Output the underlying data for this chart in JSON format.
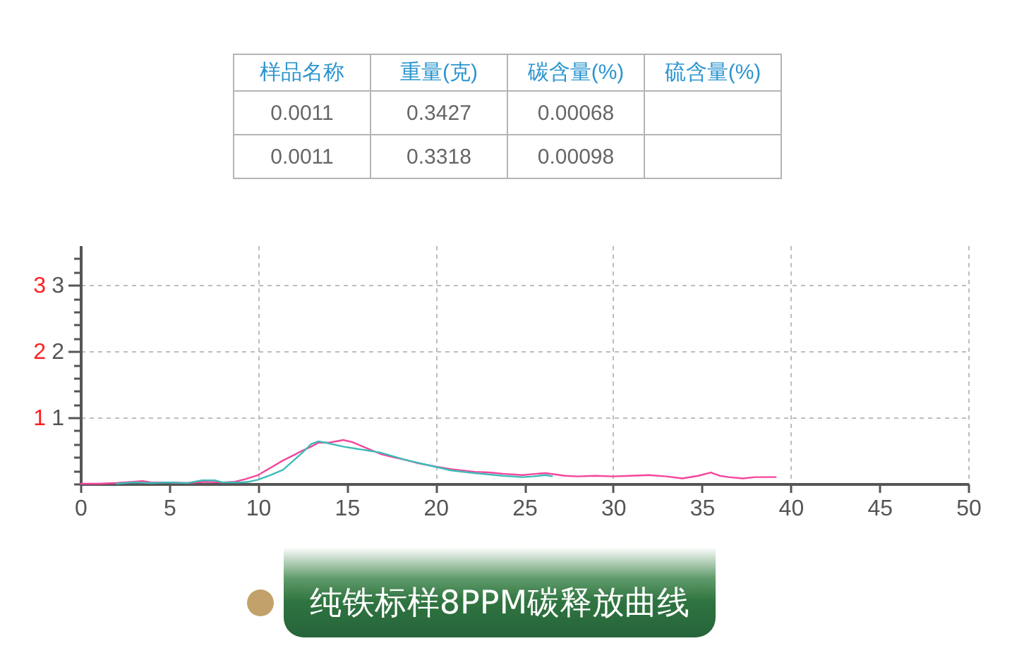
{
  "chart_data": [
    {
      "type": "other",
      "categories": [
        "样品名称",
        "重量(克)",
        "碳含量(%)",
        "硫含量(%)"
      ],
      "cell_labels": [
        [
          "0.0011",
          "0.3427",
          "0.00068",
          null
        ],
        [
          "0.0011",
          "0.3318",
          "0.00098",
          null
        ]
      ]
    },
    {
      "type": "line",
      "title": "纯铁标样8PPM碳释放曲线",
      "series": [
        {
          "color": "#f5459b",
          "axis": "y2",
          "x": [
            0,
            1,
            2,
            3,
            3.5,
            4,
            5,
            6,
            7,
            8,
            8.7,
            9.3,
            10,
            10.7,
            11.4,
            12,
            12.5,
            13,
            13.4,
            14,
            14.8,
            15.3,
            16,
            16.9,
            17.6,
            18.3,
            19,
            19.6,
            20,
            20.9,
            22.2,
            23,
            23.8,
            24.9,
            25.7,
            26.2,
            27.3,
            28,
            29,
            30,
            31,
            32,
            33,
            33.9,
            34.8,
            35.5,
            36,
            36.5,
            37.3,
            38,
            39.2
          ],
          "values": [
            0,
            0,
            0.01,
            0.03,
            0.04,
            0.02,
            0.02,
            0.01,
            0.03,
            0.02,
            0.03,
            0.07,
            0.13,
            0.24,
            0.35,
            0.43,
            0.5,
            0.56,
            0.62,
            0.62,
            0.66,
            0.63,
            0.55,
            0.45,
            0.4,
            0.36,
            0.31,
            0.28,
            0.26,
            0.22,
            0.18,
            0.17,
            0.15,
            0.13,
            0.15,
            0.16,
            0.12,
            0.11,
            0.12,
            0.11,
            0.12,
            0.13,
            0.11,
            0.08,
            0.12,
            0.17,
            0.12,
            0.1,
            0.08,
            0.1,
            0.1
          ]
        },
        {
          "color": "#3dbcb8",
          "x": [
            2,
            3,
            4,
            5,
            6,
            6.8,
            7.6,
            8,
            9,
            9.5,
            10,
            10.7,
            11.4,
            12,
            12.5,
            13,
            13.4,
            13.8,
            14.8,
            15.5,
            16.2,
            16.9,
            18.3,
            19.6,
            20.9,
            22.2,
            23.8,
            24.9,
            25.5,
            26.2,
            26.6
          ],
          "values": [
            0,
            0.02,
            0.01,
            0.02,
            0.01,
            0.05,
            0.05,
            0.02,
            0.02,
            0.03,
            0.06,
            0.13,
            0.21,
            0.35,
            0.47,
            0.6,
            0.64,
            0.62,
            0.56,
            0.53,
            0.5,
            0.47,
            0.36,
            0.28,
            0.2,
            0.16,
            0.12,
            0.1,
            0.11,
            0.13,
            0.11
          ]
        }
      ],
      "xlim": [
        0,
        50
      ],
      "xticks": [
        0,
        5,
        10,
        15,
        20,
        25,
        30,
        35,
        40,
        45,
        50
      ],
      "ylim": [
        0,
        3.6
      ],
      "yticks": [
        {
          "value": 0,
          "label": null
        },
        {
          "value": 0.2,
          "label": null
        },
        {
          "value": 0.4,
          "label": null
        },
        {
          "value": 0.6,
          "label": null
        },
        {
          "value": 0.8,
          "label": null
        },
        1,
        {
          "value": 1.2,
          "label": null
        },
        {
          "value": 1.4,
          "label": null
        },
        {
          "value": 1.6,
          "label": null
        },
        {
          "value": 1.8,
          "label": null
        },
        2,
        {
          "value": 2.2,
          "label": null
        },
        {
          "value": 2.4,
          "label": null
        },
        {
          "value": 2.6,
          "label": null
        },
        {
          "value": 2.8,
          "label": null
        },
        3,
        {
          "value": 3.2,
          "label": null
        },
        {
          "value": 3.4,
          "label": null
        }
      ],
      "y2lim": [
        0,
        3.6
      ],
      "y2ticks": [
        1,
        2,
        3
      ],
      "grid": true
    }
  ]
}
